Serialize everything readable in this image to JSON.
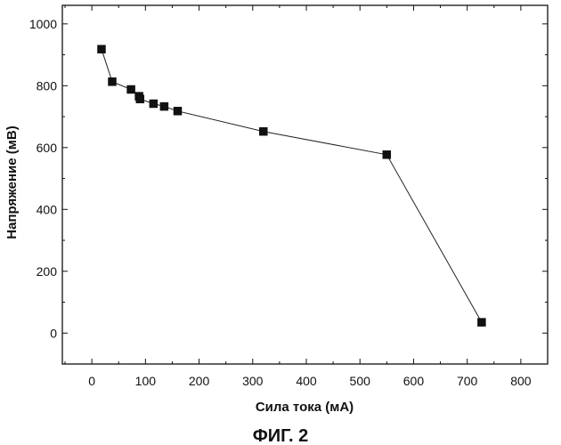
{
  "chart_data": {
    "type": "line",
    "title": "",
    "xlabel": "Сила тока (мА)",
    "ylabel": "Напряжение (мВ)",
    "caption": "ФИГ. 2",
    "xlim": [
      -55,
      850
    ],
    "ylim": [
      -100,
      1060
    ],
    "xticks": [
      0,
      100,
      200,
      300,
      400,
      500,
      600,
      700,
      800
    ],
    "yticks": [
      0,
      200,
      400,
      600,
      800,
      1000
    ],
    "grid": false,
    "marker": "square",
    "series": [
      {
        "name": "",
        "x": [
          18,
          38,
          73,
          88,
          90,
          115,
          135,
          160,
          320,
          550,
          727
        ],
        "y": [
          918,
          813,
          788,
          766,
          757,
          742,
          733,
          718,
          652,
          577,
          35
        ]
      }
    ]
  }
}
